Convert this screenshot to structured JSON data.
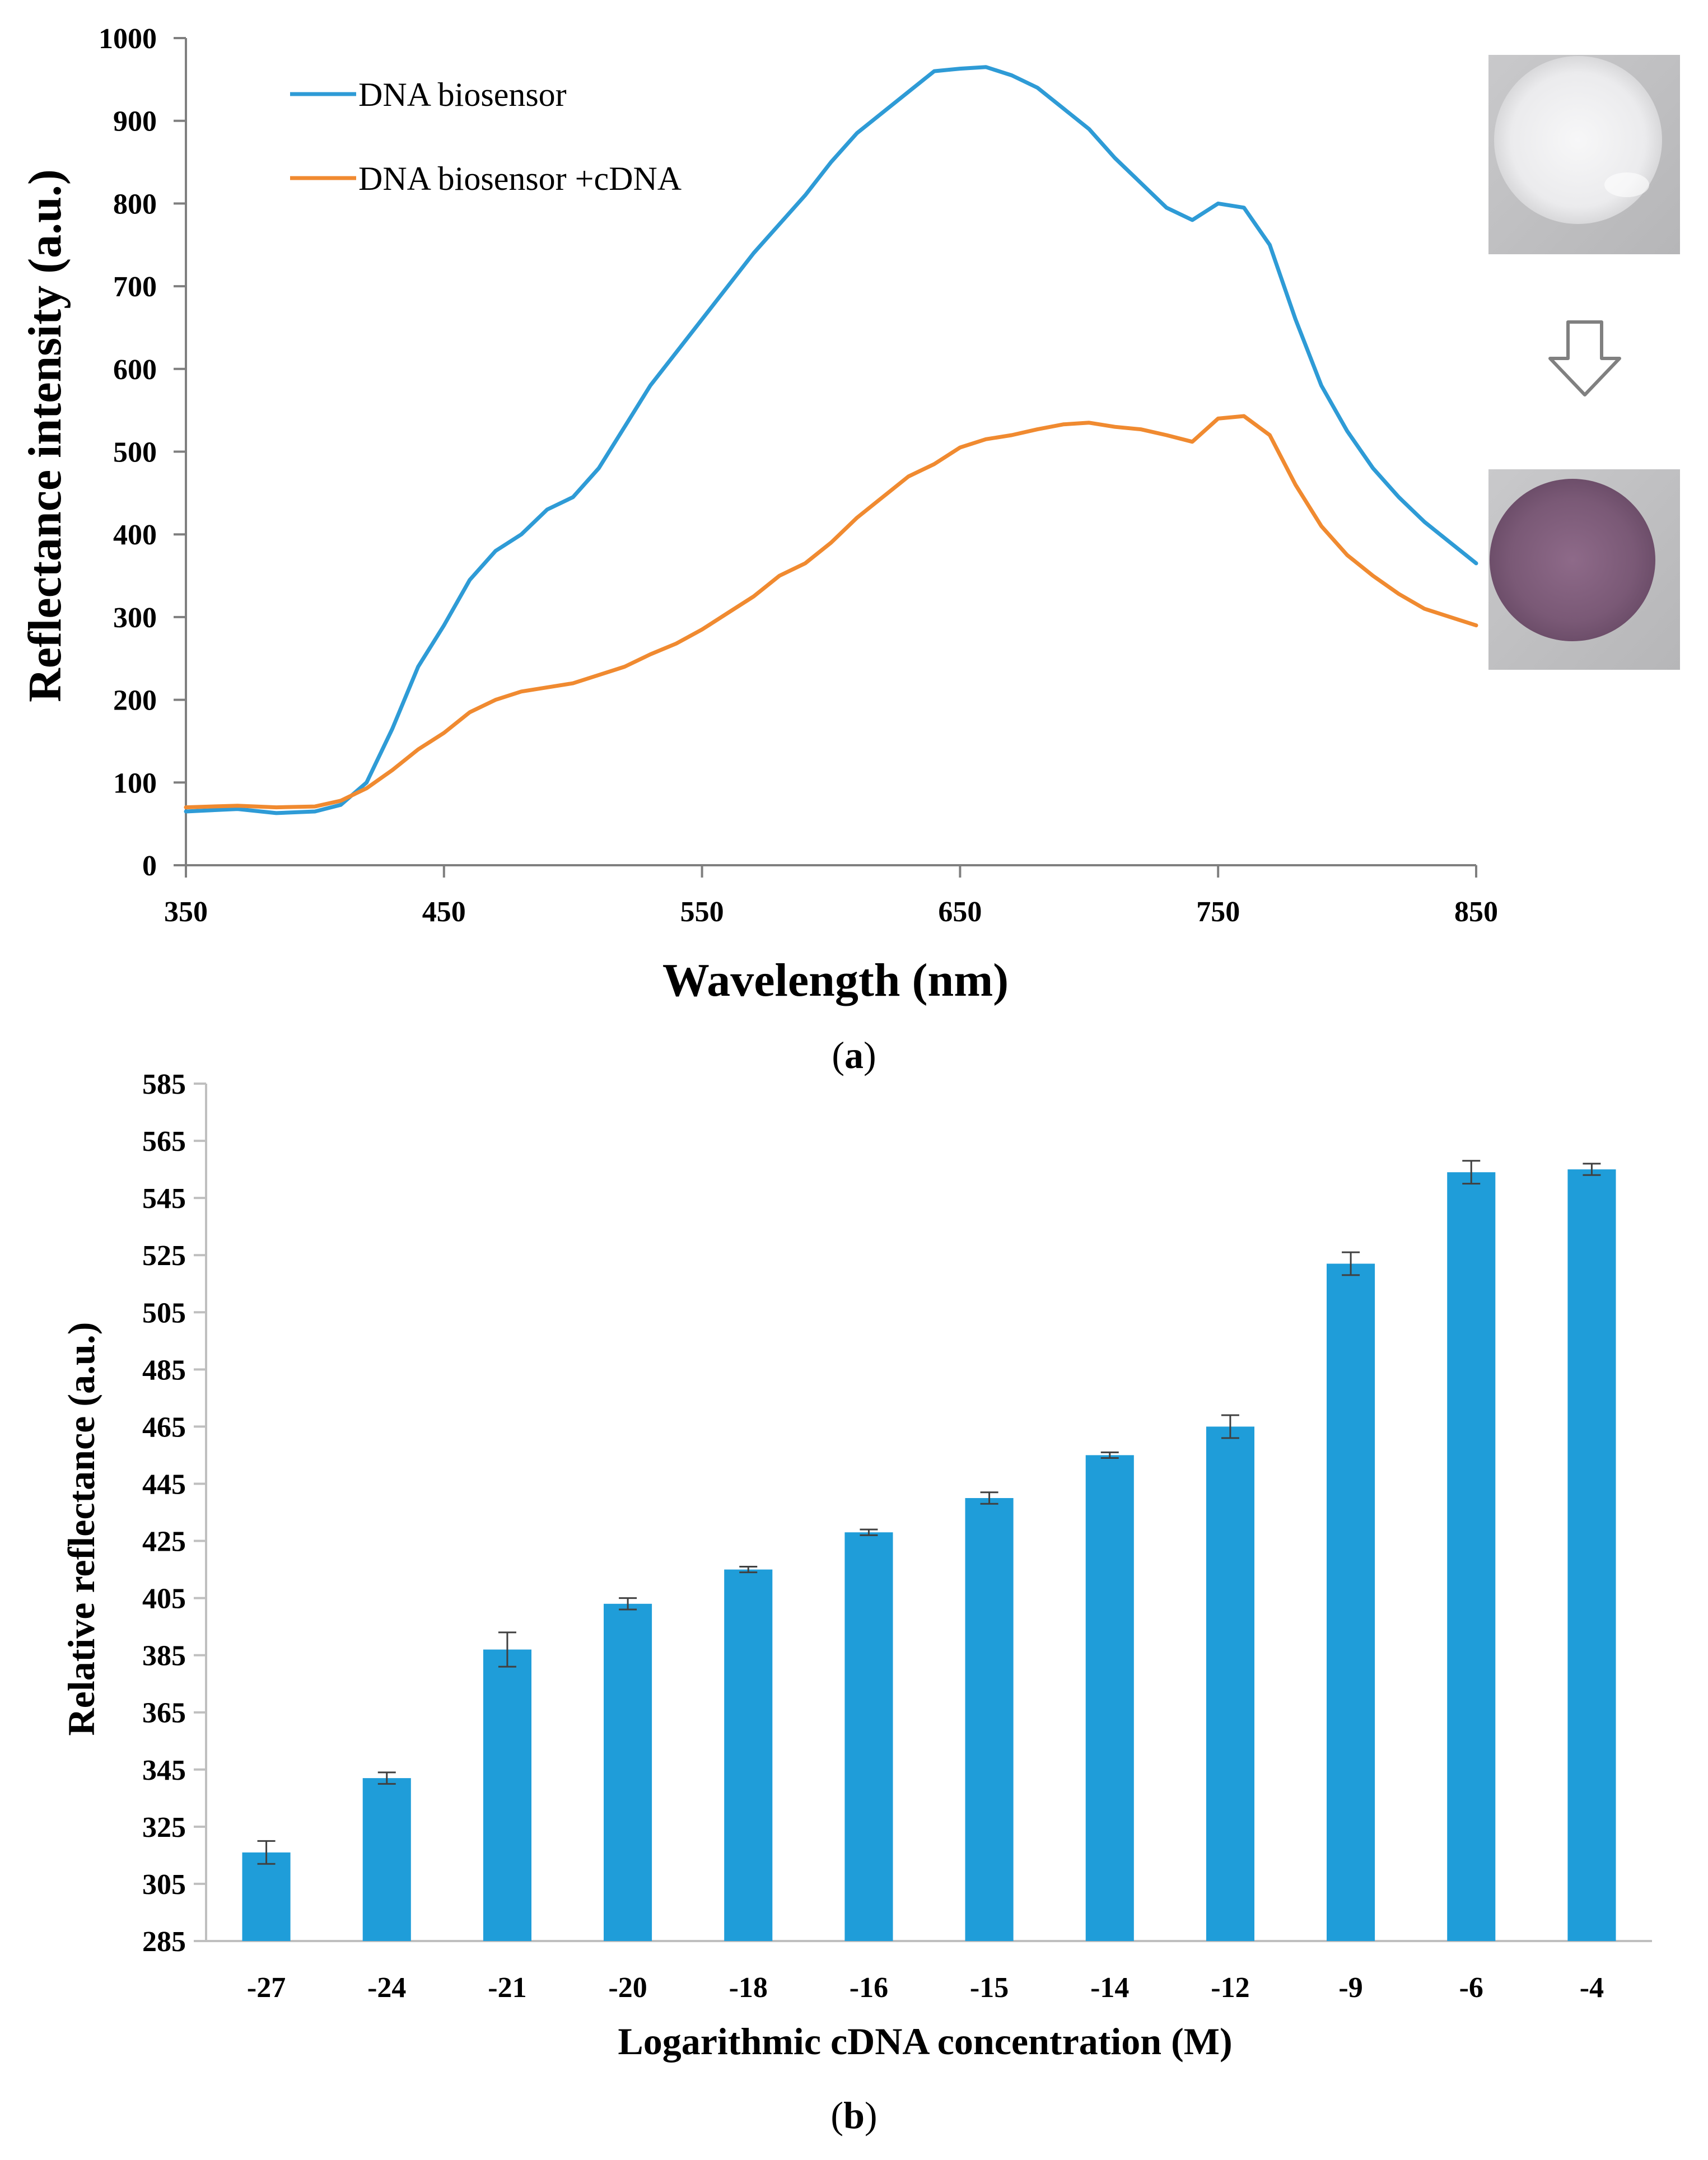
{
  "chart_data": [
    {
      "type": "line",
      "panel_label": "a",
      "title": "",
      "xlabel": "Wavelength (nm)",
      "ylabel": "Reflectance intensity (a.u.)",
      "xlim": [
        350,
        850
      ],
      "ylim": [
        0,
        1000
      ],
      "x_ticks": [
        350,
        450,
        550,
        650,
        750,
        850
      ],
      "y_ticks": [
        0,
        100,
        200,
        300,
        400,
        500,
        600,
        700,
        800,
        900,
        1000
      ],
      "grid": false,
      "legend_position": "top-left",
      "series": [
        {
          "name": "DNA biosensor",
          "color": "#2e9bd6",
          "x": [
            350,
            370,
            385,
            400,
            410,
            420,
            430,
            440,
            450,
            460,
            470,
            480,
            490,
            500,
            510,
            520,
            530,
            540,
            550,
            560,
            570,
            580,
            590,
            600,
            610,
            620,
            630,
            640,
            650,
            660,
            670,
            680,
            690,
            700,
            710,
            720,
            730,
            740,
            750,
            760,
            770,
            780,
            790,
            800,
            810,
            820,
            830,
            840,
            850
          ],
          "y": [
            65,
            68,
            63,
            65,
            73,
            100,
            165,
            240,
            290,
            345,
            380,
            400,
            430,
            445,
            480,
            530,
            580,
            620,
            660,
            700,
            740,
            775,
            810,
            850,
            885,
            910,
            935,
            960,
            963,
            965,
            955,
            940,
            915,
            890,
            855,
            825,
            795,
            780,
            800,
            795,
            750,
            660,
            580,
            525,
            480,
            445,
            415,
            390,
            365
          ]
        },
        {
          "name": "DNA biosensor +cDNA",
          "color": "#f08a30",
          "x": [
            350,
            370,
            385,
            400,
            410,
            420,
            430,
            440,
            450,
            460,
            470,
            480,
            490,
            500,
            510,
            520,
            530,
            540,
            550,
            560,
            570,
            580,
            590,
            600,
            610,
            620,
            630,
            640,
            650,
            660,
            670,
            680,
            690,
            700,
            710,
            720,
            730,
            740,
            750,
            760,
            770,
            780,
            790,
            800,
            810,
            820,
            830,
            840,
            850
          ],
          "y": [
            70,
            72,
            70,
            71,
            78,
            93,
            115,
            140,
            160,
            185,
            200,
            210,
            215,
            220,
            230,
            240,
            255,
            268,
            285,
            305,
            325,
            350,
            365,
            390,
            420,
            445,
            470,
            485,
            505,
            515,
            520,
            527,
            533,
            535,
            530,
            527,
            520,
            512,
            540,
            543,
            520,
            460,
            410,
            375,
            350,
            328,
            310,
            300,
            290
          ]
        }
      ],
      "inset_images": [
        "white-sensor-spot",
        "purple-sensor-spot"
      ]
    },
    {
      "type": "bar",
      "panel_label": "b",
      "title": "",
      "xlabel": "Logarithmic cDNA concentration (M)",
      "ylabel": "Relative reflectance (a.u.)",
      "ylim": [
        285,
        585
      ],
      "y_ticks": [
        285,
        305,
        325,
        345,
        365,
        385,
        405,
        425,
        445,
        465,
        485,
        505,
        525,
        545,
        565,
        585
      ],
      "grid": false,
      "bar_color": "#1f9dd9",
      "categories": [
        "-27",
        "-24",
        "-21",
        "-20",
        "-18",
        "-16",
        "-15",
        "-14",
        "-12",
        "-9",
        "-6",
        "-4"
      ],
      "values": [
        316,
        342,
        387,
        403,
        415,
        428,
        440,
        455,
        465,
        522,
        554,
        555
      ],
      "errors": [
        4,
        2,
        6,
        2,
        1,
        1,
        2,
        1,
        4,
        4,
        4,
        2
      ]
    }
  ]
}
